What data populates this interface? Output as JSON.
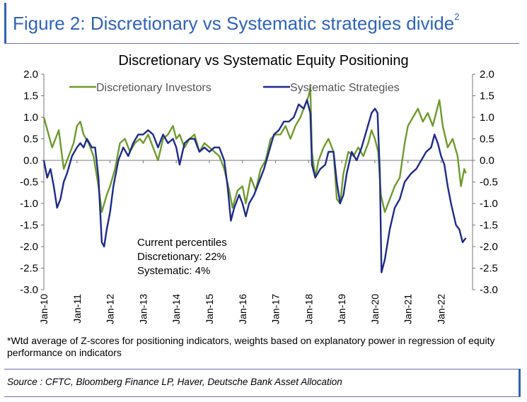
{
  "figure_title": "Figure 2: Discretionary vs Systematic strategies divide",
  "figure_title_sup": "2",
  "colors": {
    "accent": "#2f63b8",
    "discretionary": "#6f9a2d",
    "systematic": "#1d2a8a"
  },
  "footnote": "*Wtd average of Z-scores for positioning indicators, weights based on explanatory power in regression of equity performance on indicators",
  "source": "Source : CFTC, Bloomberg Finance LP, Haver, Deutsche Bank Asset Allocation",
  "chart_data": {
    "type": "line",
    "title": "Discretionary  vs Systematic Equity Positioning",
    "xlabel": "",
    "ylabel": "",
    "x_ticks": [
      "Jan-10",
      "Jan-11",
      "Jan-12",
      "Jan-13",
      "Jan-14",
      "Jan-15",
      "Jan-16",
      "Jan-17",
      "Jan-18",
      "Jan-19",
      "Jan-20",
      "Jan-21",
      "Jan-22"
    ],
    "y_ticks": [
      "2.0",
      "1.5",
      "1.0",
      "0.5",
      "0.0",
      "-0.5",
      "-1.0",
      "-1.5",
      "-2.0",
      "-2.5",
      "-3.0"
    ],
    "ylim": [
      -3.0,
      2.0
    ],
    "legend": "top",
    "grid": false,
    "annotation": [
      "Current percentiles",
      "Discretionary: 22%",
      "Systematic: 4%"
    ],
    "series": [
      {
        "name": "Discretionary Investors",
        "color": "#6f9a2d",
        "points": [
          [
            2010.0,
            1.0
          ],
          [
            2010.25,
            0.3
          ],
          [
            2010.45,
            0.7
          ],
          [
            2010.6,
            -0.2
          ],
          [
            2010.75,
            0.1
          ],
          [
            2010.9,
            0.4
          ],
          [
            2011.0,
            0.8
          ],
          [
            2011.1,
            0.9
          ],
          [
            2011.2,
            0.6
          ],
          [
            2011.35,
            0.4
          ],
          [
            2011.5,
            0.1
          ],
          [
            2011.65,
            -0.6
          ],
          [
            2011.75,
            -1.2
          ],
          [
            2011.9,
            -0.8
          ],
          [
            2012.0,
            -0.6
          ],
          [
            2012.15,
            -0.2
          ],
          [
            2012.3,
            0.4
          ],
          [
            2012.45,
            0.5
          ],
          [
            2012.6,
            0.2
          ],
          [
            2012.75,
            0.4
          ],
          [
            2012.9,
            0.5
          ],
          [
            2013.0,
            0.4
          ],
          [
            2013.15,
            0.6
          ],
          [
            2013.3,
            0.3
          ],
          [
            2013.45,
            0.0
          ],
          [
            2013.6,
            0.5
          ],
          [
            2013.75,
            0.6
          ],
          [
            2013.9,
            0.8
          ],
          [
            2014.0,
            0.5
          ],
          [
            2014.1,
            0.6
          ],
          [
            2014.25,
            0.3
          ],
          [
            2014.4,
            0.5
          ],
          [
            2014.55,
            0.6
          ],
          [
            2014.7,
            0.2
          ],
          [
            2014.85,
            0.4
          ],
          [
            2015.0,
            0.3
          ],
          [
            2015.15,
            0.2
          ],
          [
            2015.3,
            0.1
          ],
          [
            2015.45,
            -0.2
          ],
          [
            2015.6,
            -0.7
          ],
          [
            2015.7,
            -1.1
          ],
          [
            2015.85,
            -0.7
          ],
          [
            2016.0,
            -0.6
          ],
          [
            2016.1,
            -1.0
          ],
          [
            2016.25,
            -0.4
          ],
          [
            2016.4,
            -0.7
          ],
          [
            2016.55,
            -0.2
          ],
          [
            2016.7,
            0.0
          ],
          [
            2016.85,
            0.5
          ],
          [
            2017.0,
            0.6
          ],
          [
            2017.15,
            0.6
          ],
          [
            2017.3,
            0.8
          ],
          [
            2017.45,
            0.5
          ],
          [
            2017.6,
            0.8
          ],
          [
            2017.75,
            1.0
          ],
          [
            2017.9,
            1.3
          ],
          [
            2018.0,
            1.5
          ],
          [
            2018.05,
            1.7
          ],
          [
            2018.1,
            0.2
          ],
          [
            2018.2,
            -0.4
          ],
          [
            2018.3,
            0.0
          ],
          [
            2018.45,
            0.3
          ],
          [
            2018.6,
            0.5
          ],
          [
            2018.75,
            0.2
          ],
          [
            2018.85,
            -0.9
          ],
          [
            2018.95,
            -1.0
          ],
          [
            2019.05,
            -0.3
          ],
          [
            2019.2,
            0.2
          ],
          [
            2019.35,
            0.1
          ],
          [
            2019.5,
            0.3
          ],
          [
            2019.65,
            0.1
          ],
          [
            2019.8,
            0.4
          ],
          [
            2019.9,
            0.7
          ],
          [
            2020.0,
            0.5
          ],
          [
            2020.1,
            0.2
          ],
          [
            2020.18,
            -0.8
          ],
          [
            2020.3,
            -1.2
          ],
          [
            2020.45,
            -0.9
          ],
          [
            2020.6,
            -0.6
          ],
          [
            2020.75,
            -0.4
          ],
          [
            2020.9,
            0.4
          ],
          [
            2021.0,
            0.8
          ],
          [
            2021.15,
            1.0
          ],
          [
            2021.3,
            1.2
          ],
          [
            2021.45,
            0.9
          ],
          [
            2021.6,
            1.1
          ],
          [
            2021.75,
            0.8
          ],
          [
            2021.85,
            1.1
          ],
          [
            2021.95,
            1.4
          ],
          [
            2022.05,
            0.8
          ],
          [
            2022.2,
            0.3
          ],
          [
            2022.35,
            0.5
          ],
          [
            2022.5,
            0.1
          ],
          [
            2022.6,
            -0.6
          ],
          [
            2022.7,
            -0.2
          ],
          [
            2022.75,
            -0.3
          ]
        ]
      },
      {
        "name": "Systematic Strategies",
        "color": "#1d2a8a",
        "points": [
          [
            2010.0,
            0.0
          ],
          [
            2010.1,
            -0.4
          ],
          [
            2010.2,
            -0.2
          ],
          [
            2010.3,
            -0.6
          ],
          [
            2010.4,
            -1.1
          ],
          [
            2010.5,
            -0.9
          ],
          [
            2010.6,
            -0.5
          ],
          [
            2010.7,
            -0.3
          ],
          [
            2010.85,
            0.1
          ],
          [
            2011.0,
            0.3
          ],
          [
            2011.1,
            0.4
          ],
          [
            2011.2,
            0.3
          ],
          [
            2011.3,
            0.5
          ],
          [
            2011.45,
            0.3
          ],
          [
            2011.55,
            0.3
          ],
          [
            2011.65,
            -0.4
          ],
          [
            2011.75,
            -1.9
          ],
          [
            2011.82,
            -2.0
          ],
          [
            2011.9,
            -1.6
          ],
          [
            2012.0,
            -1.2
          ],
          [
            2012.1,
            -0.6
          ],
          [
            2012.25,
            0.0
          ],
          [
            2012.4,
            0.3
          ],
          [
            2012.55,
            0.1
          ],
          [
            2012.7,
            0.4
          ],
          [
            2012.85,
            0.6
          ],
          [
            2013.0,
            0.6
          ],
          [
            2013.15,
            0.7
          ],
          [
            2013.3,
            0.6
          ],
          [
            2013.45,
            0.3
          ],
          [
            2013.6,
            0.6
          ],
          [
            2013.75,
            0.4
          ],
          [
            2013.9,
            0.5
          ],
          [
            2014.0,
            0.3
          ],
          [
            2014.1,
            -0.1
          ],
          [
            2014.25,
            0.4
          ],
          [
            2014.4,
            0.5
          ],
          [
            2014.55,
            0.5
          ],
          [
            2014.7,
            0.2
          ],
          [
            2014.85,
            0.3
          ],
          [
            2015.0,
            0.2
          ],
          [
            2015.15,
            0.3
          ],
          [
            2015.3,
            0.3
          ],
          [
            2015.45,
            0.0
          ],
          [
            2015.55,
            -0.6
          ],
          [
            2015.65,
            -1.4
          ],
          [
            2015.75,
            -1.1
          ],
          [
            2015.9,
            -0.8
          ],
          [
            2016.0,
            -1.0
          ],
          [
            2016.1,
            -1.3
          ],
          [
            2016.2,
            -1.0
          ],
          [
            2016.35,
            -0.8
          ],
          [
            2016.5,
            -0.5
          ],
          [
            2016.65,
            -0.2
          ],
          [
            2016.8,
            0.2
          ],
          [
            2016.95,
            0.6
          ],
          [
            2017.1,
            0.7
          ],
          [
            2017.25,
            0.9
          ],
          [
            2017.4,
            0.9
          ],
          [
            2017.55,
            1.0
          ],
          [
            2017.7,
            1.3
          ],
          [
            2017.85,
            1.2
          ],
          [
            2017.95,
            1.4
          ],
          [
            2018.05,
            1.1
          ],
          [
            2018.1,
            -0.1
          ],
          [
            2018.2,
            -0.4
          ],
          [
            2018.35,
            -0.2
          ],
          [
            2018.5,
            -0.1
          ],
          [
            2018.6,
            0.2
          ],
          [
            2018.75,
            0.2
          ],
          [
            2018.85,
            -0.5
          ],
          [
            2018.95,
            -1.0
          ],
          [
            2019.05,
            -0.8
          ],
          [
            2019.15,
            -0.3
          ],
          [
            2019.3,
            0.2
          ],
          [
            2019.45,
            0.0
          ],
          [
            2019.6,
            0.3
          ],
          [
            2019.75,
            0.7
          ],
          [
            2019.9,
            1.1
          ],
          [
            2020.0,
            1.2
          ],
          [
            2020.08,
            1.1
          ],
          [
            2020.15,
            -0.3
          ],
          [
            2020.2,
            -2.6
          ],
          [
            2020.3,
            -2.3
          ],
          [
            2020.45,
            -1.6
          ],
          [
            2020.6,
            -1.1
          ],
          [
            2020.75,
            -0.9
          ],
          [
            2020.9,
            -0.5
          ],
          [
            2021.0,
            -0.4
          ],
          [
            2021.1,
            -0.3
          ],
          [
            2021.25,
            -0.2
          ],
          [
            2021.4,
            0.0
          ],
          [
            2021.55,
            0.2
          ],
          [
            2021.7,
            0.3
          ],
          [
            2021.8,
            0.6
          ],
          [
            2021.9,
            0.4
          ],
          [
            2022.0,
            0.1
          ],
          [
            2022.1,
            -0.1
          ],
          [
            2022.2,
            -0.6
          ],
          [
            2022.3,
            -1.0
          ],
          [
            2022.45,
            -1.5
          ],
          [
            2022.55,
            -1.6
          ],
          [
            2022.65,
            -1.9
          ],
          [
            2022.75,
            -1.8
          ]
        ]
      }
    ]
  }
}
